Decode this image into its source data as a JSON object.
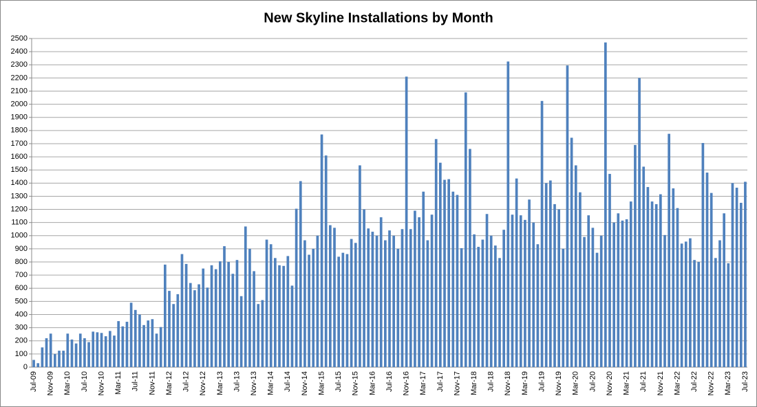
{
  "chart_data": {
    "type": "bar",
    "title": "New Skyline Installations by Month",
    "categories": [
      "Jul-09",
      null,
      null,
      null,
      "Nov-09",
      null,
      null,
      null,
      "Mar-10",
      null,
      null,
      null,
      "Jul-10",
      null,
      null,
      null,
      "Nov-10",
      null,
      null,
      null,
      "Mar-11",
      null,
      null,
      null,
      "Jul-11",
      null,
      null,
      null,
      "Nov-11",
      null,
      null,
      null,
      "Mar-12",
      null,
      null,
      null,
      "Jul-12",
      null,
      null,
      null,
      "Nov-12",
      null,
      null,
      null,
      "Mar-13",
      null,
      null,
      null,
      "Jul-13",
      null,
      null,
      null,
      "Nov-13",
      null,
      null,
      null,
      "Mar-14",
      null,
      null,
      null,
      "Jul-14",
      null,
      null,
      null,
      "Nov-14",
      null,
      null,
      null,
      "Mar-15",
      null,
      null,
      null,
      "Jul-15",
      null,
      null,
      null,
      "Nov-15",
      null,
      null,
      null,
      "Mar-16",
      null,
      null,
      null,
      "Jul-16",
      null,
      null,
      null,
      "Nov-16",
      null,
      null,
      null,
      "Mar-17",
      null,
      null,
      null,
      "Jul-17",
      null,
      null,
      null,
      "Nov-17",
      null,
      null,
      null,
      "Mar-18",
      null,
      null,
      null,
      "Jul-18",
      null,
      null,
      null,
      "Nov-18",
      null,
      null,
      null,
      "Mar-19",
      null,
      null,
      null,
      "Jul-19",
      null,
      null,
      null,
      "Nov-19",
      null,
      null,
      null,
      "Mar-20",
      null,
      null,
      null,
      "Jul-20",
      null,
      null,
      null,
      "Nov-20",
      null,
      null,
      null,
      "Mar-21",
      null,
      null,
      null,
      "Jul-21",
      null,
      null,
      null,
      "Nov-21",
      null,
      null,
      null,
      "Mar-22",
      null,
      null,
      null,
      "Jul-22",
      null,
      null,
      null,
      "Nov-22",
      null,
      null,
      null,
      "Mar-23",
      null,
      null,
      null,
      "Jul-23"
    ],
    "values": [
      55,
      30,
      150,
      220,
      255,
      100,
      125,
      125,
      255,
      210,
      180,
      255,
      220,
      190,
      270,
      265,
      260,
      235,
      275,
      240,
      350,
      310,
      345,
      490,
      435,
      400,
      320,
      355,
      365,
      255,
      305,
      780,
      580,
      480,
      555,
      860,
      785,
      640,
      585,
      630,
      750,
      605,
      775,
      745,
      805,
      920,
      800,
      710,
      815,
      540,
      1070,
      900,
      730,
      480,
      510,
      970,
      935,
      830,
      775,
      770,
      845,
      620,
      1205,
      1415,
      965,
      855,
      900,
      1000,
      1770,
      1610,
      1080,
      1060,
      840,
      870,
      860,
      975,
      945,
      1535,
      1200,
      1055,
      1030,
      1000,
      1140,
      965,
      1040,
      1000,
      900,
      1050,
      2210,
      1050,
      1190,
      1140,
      1335,
      965,
      1160,
      1735,
      1555,
      1425,
      1430,
      1335,
      1310,
      905,
      2090,
      1660,
      1010,
      915,
      970,
      1165,
      1000,
      925,
      830,
      1045,
      2325,
      1160,
      1435,
      1155,
      1120,
      1275,
      1100,
      935,
      2025,
      1400,
      1420,
      1240,
      1200,
      900,
      2295,
      1745,
      1535,
      1330,
      990,
      1155,
      1060,
      870,
      1000,
      2470,
      1470,
      1100,
      1170,
      1115,
      1125,
      1260,
      1690,
      2200,
      1525,
      1370,
      1260,
      1240,
      1315,
      1005,
      1775,
      1360,
      1210,
      940,
      955,
      980,
      815,
      800,
      1705,
      1480,
      1325,
      830,
      965,
      1170,
      790,
      1400,
      1365,
      1250,
      1410
    ],
    "color": "#4f81bd",
    "ylim": [
      0,
      2500
    ],
    "yticks": [
      0,
      100,
      200,
      300,
      400,
      500,
      600,
      700,
      800,
      900,
      1000,
      1100,
      1200,
      1300,
      1400,
      1500,
      1600,
      1700,
      1800,
      1900,
      2000,
      2100,
      2200,
      2300,
      2400,
      2500
    ],
    "grid": true
  }
}
